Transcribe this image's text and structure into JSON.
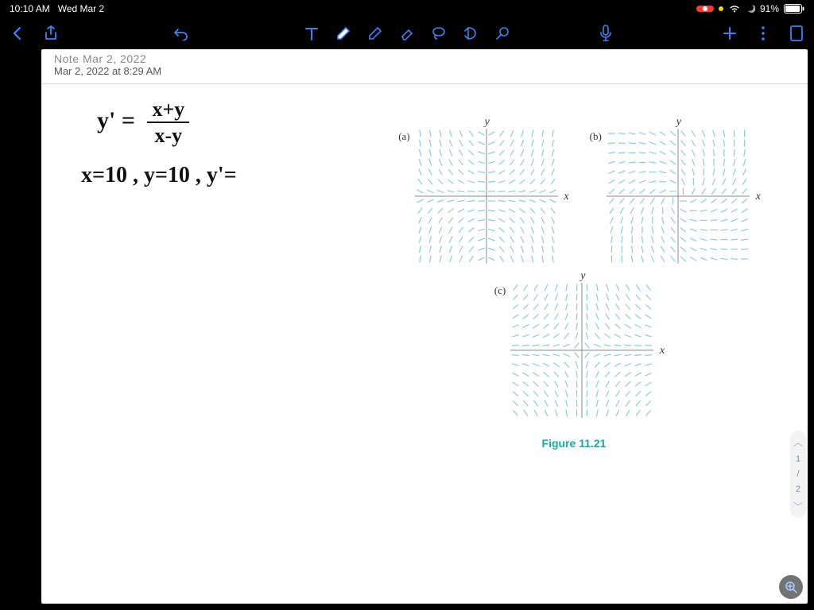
{
  "status": {
    "time": "10:10 AM",
    "date": "Wed Mar 2",
    "battery": "91%",
    "recording": true
  },
  "note": {
    "title_partial": "Note Mar 2, 2022",
    "subtitle": "Mar 2, 2022 at 8:29 AM"
  },
  "handwriting": {
    "lhs": "y' =",
    "numerator": "x+y",
    "denominator": "x-y",
    "line2": "x=10 , y=10 , y'="
  },
  "figures": {
    "caption": "Figure 11.21",
    "caption_color": "#1ba8a0",
    "tick_color": "#7fc9d9",
    "axis_color": "#888888",
    "grid": 14,
    "panels": [
      {
        "label": "(a)",
        "formula": "xy"
      },
      {
        "label": "(b)",
        "formula": "radial"
      },
      {
        "label": "(c)",
        "formula": "saddle"
      }
    ]
  },
  "scroller": {
    "page": "1",
    "sep": "/",
    "total": "2"
  },
  "toolbar": {
    "accent": "#3b82f6"
  }
}
